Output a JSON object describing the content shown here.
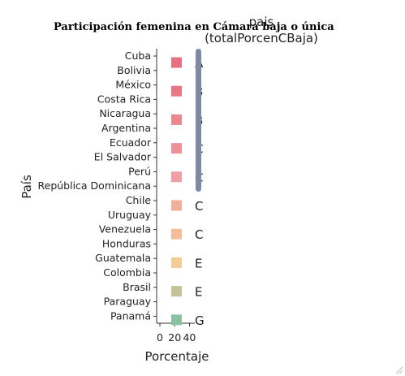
{
  "chart_data": {
    "type": "legend-scatter",
    "title": "Participación femenina en Cámara baja o única",
    "xlabel": "Porcentaje",
    "ylabel": "País",
    "xlim": [
      0,
      45
    ],
    "xticks": [
      0,
      20,
      40
    ],
    "categories": [
      "Cuba",
      "Bolivia",
      "México",
      "Costa Rica",
      "Nicaragua",
      "Argentina",
      "Ecuador",
      "El Salvador",
      "Perú",
      "República Dominicana",
      "Chile",
      "Uruguay",
      "Venezuela",
      "Honduras",
      "Guatemala",
      "Colombia",
      "Brasil",
      "Paraguay",
      "Panamá"
    ],
    "legend": {
      "title_line1": "pais",
      "title_line2": "(totalPorcenCBaja)",
      "placement": "right",
      "items": [
        {
          "key": "A",
          "color": "#e6707f"
        },
        {
          "key": "B",
          "color": "#e87682"
        },
        {
          "key": "B",
          "color": "#ec8690"
        },
        {
          "key": "C",
          "color": "#ef919a"
        },
        {
          "key": "C",
          "color": "#f09da4"
        },
        {
          "key": "C",
          "color": "#f4ad98"
        },
        {
          "key": "C",
          "color": "#f5bd9a"
        },
        {
          "key": "E",
          "color": "#f3cd96"
        },
        {
          "key": "E",
          "color": "#c3c396"
        },
        {
          "key": "G",
          "color": "#88c2a0"
        }
      ]
    },
    "grid": false
  },
  "colors": {
    "scrollbar": "#7b8aa5"
  }
}
